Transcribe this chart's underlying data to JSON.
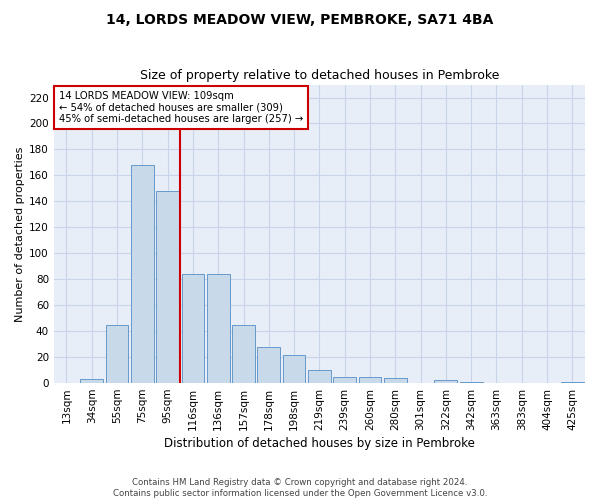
{
  "title": "14, LORDS MEADOW VIEW, PEMBROKE, SA71 4BA",
  "subtitle": "Size of property relative to detached houses in Pembroke",
  "xlabel": "Distribution of detached houses by size in Pembroke",
  "ylabel": "Number of detached properties",
  "categories": [
    "13sqm",
    "34sqm",
    "55sqm",
    "75sqm",
    "95sqm",
    "116sqm",
    "136sqm",
    "157sqm",
    "178sqm",
    "198sqm",
    "219sqm",
    "239sqm",
    "260sqm",
    "280sqm",
    "301sqm",
    "322sqm",
    "342sqm",
    "363sqm",
    "383sqm",
    "404sqm",
    "425sqm"
  ],
  "values": [
    0,
    3,
    45,
    168,
    148,
    84,
    84,
    45,
    28,
    22,
    10,
    5,
    5,
    4,
    0,
    2,
    1,
    0,
    0,
    0,
    1
  ],
  "bar_color": "#c8d9ea",
  "bar_edge_color": "#6699cc",
  "vline_color": "#cc0000",
  "annotation_box_color": "#cc0000",
  "annotation_lines": [
    "14 LORDS MEADOW VIEW: 109sqm",
    "← 54% of detached houses are smaller (309)",
    "45% of semi-detached houses are larger (257) →"
  ],
  "ylim": [
    0,
    230
  ],
  "yticks": [
    0,
    20,
    40,
    60,
    80,
    100,
    120,
    140,
    160,
    180,
    200,
    220
  ],
  "grid_color": "#c8d4e8",
  "background_color": "#e8eef8",
  "title_fontsize": 10,
  "subtitle_fontsize": 9,
  "xlabel_fontsize": 8.5,
  "ylabel_fontsize": 8,
  "tick_fontsize": 7.5,
  "footer_line1": "Contains HM Land Registry data © Crown copyright and database right 2024.",
  "footer_line2": "Contains public sector information licensed under the Open Government Licence v3.0."
}
